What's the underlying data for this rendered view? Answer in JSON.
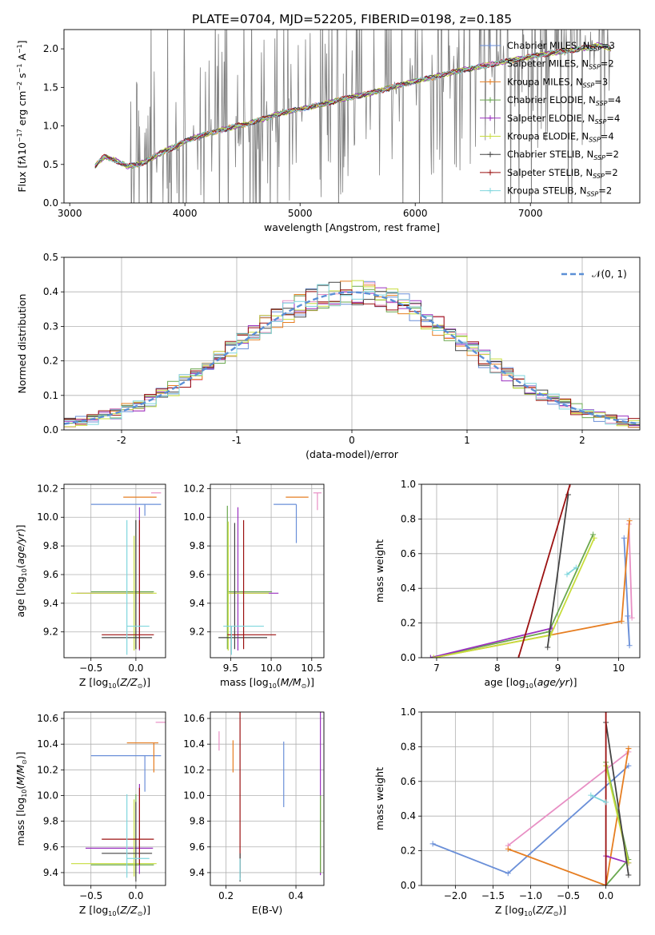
{
  "figure_title": "PLATE=0704, MJD=52205, FIBERID=0198, z=0.185",
  "colors": {
    "chabrier_miles": "#6a8fd8",
    "salpeter_miles": "#e88fc4",
    "kroupa_miles": "#e67e22",
    "chabrier_elodie": "#6aa84f",
    "salpeter_elodie": "#9b30c0",
    "kroupa_elodie": "#c7dd3c",
    "chabrier_stelib": "#444444",
    "salpeter_stelib": "#9b1111",
    "kroupa_stelib": "#7fd6dd",
    "data": "#808080",
    "gaussian": "#5b8fd6",
    "grid": "#b0b0b0"
  },
  "chart_data": [
    {
      "id": "spectrum",
      "type": "line",
      "xlabel": "wavelength [Angstrom, rest frame]",
      "ylabel_html": "Flux [f<tspan font-style='italic'>λ</tspan>10<tspan dy='-5' font-size='8'>−17</tspan><tspan dy='5'> erg cm</tspan><tspan dy='-5' font-size='8'>−2</tspan><tspan dy='5'> s</tspan><tspan dy='-5' font-size='8'>−1</tspan><tspan dy='5'> A</tspan><tspan dy='-5' font-size='8'>−1</tspan><tspan dy='5'>]</tspan>",
      "xlim": [
        2950,
        7950
      ],
      "ylim": [
        0,
        2.25
      ],
      "xticks": [
        3000,
        4000,
        5000,
        6000,
        7000
      ],
      "yticks": [
        0.0,
        0.5,
        1.0,
        1.5,
        2.0
      ],
      "continuum_x": [
        3220,
        3300,
        3400,
        3500,
        3600,
        3700,
        3800,
        3900,
        4000,
        4100,
        4200,
        4400,
        4600,
        4800,
        5000,
        5200,
        5400,
        5600,
        5800,
        6000,
        6200,
        6400,
        6600,
        6800,
        7000,
        7200,
        7400,
        7600,
        7700
      ],
      "continuum_y": [
        0.48,
        0.6,
        0.55,
        0.48,
        0.5,
        0.57,
        0.66,
        0.72,
        0.8,
        0.86,
        0.9,
        0.98,
        1.05,
        1.15,
        1.22,
        1.28,
        1.36,
        1.42,
        1.5,
        1.58,
        1.65,
        1.72,
        1.78,
        1.84,
        1.9,
        1.95,
        1.99,
        2.05,
        2.0
      ],
      "data_noise_start": 3500,
      "legend": [
        {
          "key": "chabrier_miles",
          "label": "Chabrier MILES, N",
          "sub": "SSP",
          "tail": "=3",
          "marker": "+"
        },
        {
          "key": "salpeter_miles",
          "label": "Salpeter MILES, N",
          "sub": "SSP",
          "tail": "=2",
          "marker": "+"
        },
        {
          "key": "kroupa_miles",
          "label": "Kroupa MILES, N",
          "sub": "SSP",
          "tail": "=3",
          "marker": "+"
        },
        {
          "key": "chabrier_elodie",
          "label": "Chabrier ELODIE, N",
          "sub": "SSP",
          "tail": "=4",
          "marker": "+"
        },
        {
          "key": "salpeter_elodie",
          "label": "Salpeter ELODIE, N",
          "sub": "SSP",
          "tail": "=4",
          "marker": "+"
        },
        {
          "key": "kroupa_elodie",
          "label": "Kroupa ELODIE, N",
          "sub": "SSP",
          "tail": "=4",
          "marker": "+"
        },
        {
          "key": "chabrier_stelib",
          "label": "Chabrier STELIB, N",
          "sub": "SSP",
          "tail": "=2",
          "marker": "+"
        },
        {
          "key": "salpeter_stelib",
          "label": "Salpeter STELIB, N",
          "sub": "SSP",
          "tail": "=2",
          "marker": "+"
        },
        {
          "key": "kroupa_stelib",
          "label": "Kroupa STELIB, N",
          "sub": "SSP",
          "tail": "=2",
          "marker": "+"
        }
      ]
    },
    {
      "id": "residuals",
      "type": "step",
      "xlabel": "(data-model)/error",
      "ylabel": "Normed distribution",
      "xlim": [
        -2.5,
        2.5
      ],
      "ylim": [
        0,
        0.5
      ],
      "xticks": [
        -2,
        -1,
        0,
        1,
        2
      ],
      "yticks": [
        0.0,
        0.1,
        0.2,
        0.3,
        0.4,
        0.5
      ],
      "legend_label": "𝒩(0, 1)",
      "bin_width": 0.1
    },
    {
      "id": "age_vs_Z",
      "type": "errorbar",
      "xlabel_html": "Z [log<tspan dy='3' font-size='8'>10</tspan><tspan dy='-3'>(</tspan><tspan font-style='italic'>Z/Z</tspan><tspan dy='3' font-size='8'>⊙</tspan><tspan dy='-3'>)]</tspan>",
      "ylabel_html": "age  [log<tspan dy='3' font-size='8'>10</tspan><tspan dy='-3'>(</tspan><tspan font-style='italic'>age/yr</tspan>)]",
      "xlim": [
        -0.8,
        0.33
      ],
      "ylim": [
        9.02,
        10.23
      ],
      "xticks": [
        -0.5,
        0.0
      ],
      "xticklabels": [
        "−0.5",
        "0.0"
      ],
      "yticks": [
        9.2,
        9.4,
        9.6,
        9.8,
        10.0,
        10.2
      ],
      "points": [
        {
          "key": "chabrier_miles",
          "x": 0.1,
          "xerr": [
            0.6,
            0.18
          ],
          "y": 10.09,
          "yerr": [
            0.08,
            0.0
          ]
        },
        {
          "key": "salpeter_miles",
          "x": 0.22,
          "xerr": [
            0.05,
            0.06
          ],
          "y": 10.17,
          "yerr": [
            0.0,
            0.0
          ]
        },
        {
          "key": "kroupa_miles",
          "x": 0.18,
          "xerr": [
            0.32,
            0.05
          ],
          "y": 10.14,
          "yerr": [
            0.0,
            0.0
          ]
        },
        {
          "key": "chabrier_elodie",
          "x": 0.0,
          "xerr": [
            0.5,
            0.2
          ],
          "y": 9.48,
          "yerr": [
            0.4,
            0.5
          ]
        },
        {
          "key": "salpeter_elodie",
          "x": 0.04,
          "xerr": [
            0.7,
            0.15
          ],
          "y": 9.47,
          "yerr": [
            0.4,
            0.6
          ]
        },
        {
          "key": "kroupa_elodie",
          "x": -0.02,
          "xerr": [
            0.7,
            0.25
          ],
          "y": 9.47,
          "yerr": [
            0.4,
            0.4
          ]
        },
        {
          "key": "chabrier_stelib",
          "x": 0.0,
          "xerr": [
            0.38,
            0.18
          ],
          "y": 9.16,
          "yerr": [
            0.08,
            0.82
          ]
        },
        {
          "key": "salpeter_stelib",
          "x": 0.04,
          "xerr": [
            0.42,
            0.16
          ],
          "y": 9.18,
          "yerr": [
            0.1,
            0.8
          ]
        },
        {
          "key": "kroupa_stelib",
          "x": -0.1,
          "xerr": [
            0.0,
            0.25
          ],
          "y": 9.24,
          "yerr": [
            0.2,
            0.74
          ]
        }
      ]
    },
    {
      "id": "age_vs_mass",
      "type": "errorbar",
      "xlabel_html": "mass [log<tspan dy='3' font-size='8'>10</tspan><tspan dy='-3'>(</tspan><tspan font-style='italic'>M/M</tspan><tspan dy='3' font-size='8'>⊙</tspan><tspan dy='-3'>)]</tspan>",
      "xlim": [
        9.25,
        10.65
      ],
      "ylim": [
        9.02,
        10.23
      ],
      "xticks": [
        9.5,
        10.0,
        10.5
      ],
      "xticklabels": [
        "9.5",
        "10.0",
        "10.5"
      ],
      "yticks": [
        9.2,
        9.4,
        9.6,
        9.8,
        10.0,
        10.2
      ],
      "points": [
        {
          "key": "chabrier_miles",
          "x": 10.31,
          "xerr": [
            0.28,
            0.0
          ],
          "y": 10.09,
          "yerr": [
            0.27,
            0.0
          ]
        },
        {
          "key": "salpeter_miles",
          "x": 10.57,
          "xerr": [
            0.05,
            0.05
          ],
          "y": 10.17,
          "yerr": [
            0.12,
            0.0
          ]
        },
        {
          "key": "kroupa_miles",
          "x": 10.41,
          "xerr": [
            0.23,
            0.05
          ],
          "y": 10.14,
          "yerr": [
            0.0,
            0.0
          ]
        },
        {
          "key": "chabrier_elodie",
          "x": 9.46,
          "xerr": [
            0.0,
            0.55
          ],
          "y": 9.48,
          "yerr": [
            0.4,
            0.6
          ]
        },
        {
          "key": "salpeter_elodie",
          "x": 9.59,
          "xerr": [
            0.1,
            0.5
          ],
          "y": 9.47,
          "yerr": [
            0.4,
            0.6
          ]
        },
        {
          "key": "kroupa_elodie",
          "x": 9.47,
          "xerr": [
            0.0,
            0.5
          ],
          "y": 9.47,
          "yerr": [
            0.4,
            0.5
          ]
        },
        {
          "key": "chabrier_stelib",
          "x": 9.55,
          "xerr": [
            0.2,
            0.4
          ],
          "y": 9.16,
          "yerr": [
            0.08,
            0.8
          ]
        },
        {
          "key": "salpeter_stelib",
          "x": 9.66,
          "xerr": [
            0.2,
            0.4
          ],
          "y": 9.18,
          "yerr": [
            0.1,
            0.8
          ]
        },
        {
          "key": "kroupa_stelib",
          "x": 9.51,
          "xerr": [
            0.1,
            0.4
          ],
          "y": 9.24,
          "yerr": [
            0.2,
            0.0
          ]
        }
      ]
    },
    {
      "id": "weight_vs_age",
      "type": "line",
      "xlabel_html": "age  [log<tspan dy='3' font-size='8'>10</tspan><tspan dy='-3'>(</tspan><tspan font-style='italic'>age/yr</tspan>)]",
      "ylabel": "mass weight",
      "xlim": [
        6.75,
        10.35
      ],
      "ylim": [
        0,
        1.0
      ],
      "xticks": [
        7,
        8,
        9,
        10
      ],
      "yticks": [
        0.0,
        0.2,
        0.4,
        0.6,
        0.8,
        1.0
      ],
      "series": [
        {
          "key": "chabrier_miles",
          "x": [
            10.09,
            10.18,
            10.15
          ],
          "y": [
            0.69,
            0.07,
            0.24
          ]
        },
        {
          "key": "salpeter_miles",
          "x": [
            10.17,
            10.22
          ],
          "y": [
            0.77,
            0.23
          ]
        },
        {
          "key": "kroupa_miles",
          "x": [
            6.95,
            10.05,
            10.18
          ],
          "y": [
            0.0,
            0.21,
            0.79
          ]
        },
        {
          "key": "chabrier_elodie",
          "x": [
            6.9,
            8.85,
            9.58
          ],
          "y": [
            0.0,
            0.15,
            0.71
          ]
        },
        {
          "key": "salpeter_elodie",
          "x": [
            6.9,
            8.9
          ],
          "y": [
            0.0,
            0.17
          ]
        },
        {
          "key": "kroupa_elodie",
          "x": [
            6.95,
            8.88,
            9.6
          ],
          "y": [
            0.0,
            0.13,
            0.69
          ]
        },
        {
          "key": "chabrier_stelib",
          "x": [
            8.83,
            9.17
          ],
          "y": [
            0.06,
            0.94
          ]
        },
        {
          "key": "salpeter_stelib",
          "x": [
            8.35,
            9.2
          ],
          "y": [
            0.0,
            1.0
          ]
        },
        {
          "key": "kroupa_stelib",
          "x": [
            9.15,
            9.3
          ],
          "y": [
            0.48,
            0.52
          ]
        }
      ]
    },
    {
      "id": "mass_vs_Z",
      "type": "errorbar",
      "xlabel_html": "Z [log<tspan dy='3' font-size='8'>10</tspan><tspan dy='-3'>(</tspan><tspan font-style='italic'>Z/Z</tspan><tspan dy='3' font-size='8'>⊙</tspan><tspan dy='-3'>)]</tspan>",
      "ylabel_html": "mass [log<tspan dy='3' font-size='8'>10</tspan><tspan dy='-3'>(</tspan><tspan font-style='italic'>M/M</tspan><tspan dy='3' font-size='8'>⊙</tspan><tspan dy='-3'>)]</tspan>",
      "xlim": [
        -0.8,
        0.33
      ],
      "ylim": [
        9.3,
        10.65
      ],
      "xticks": [
        -0.5,
        0.0
      ],
      "xticklabels": [
        "−0.5",
        "0.0"
      ],
      "yticks": [
        9.4,
        9.6,
        9.8,
        10.0,
        10.2,
        10.4,
        10.6
      ],
      "points": [
        {
          "key": "chabrier_miles",
          "x": 0.1,
          "xerr": [
            0.6,
            0.18
          ],
          "y": 10.31,
          "yerr": [
            0.28,
            0.0
          ]
        },
        {
          "key": "salpeter_miles",
          "x": 0.28,
          "xerr": [
            0.06,
            0.05
          ],
          "y": 10.57,
          "yerr": [
            0.0,
            0.0
          ]
        },
        {
          "key": "kroupa_miles",
          "x": 0.2,
          "xerr": [
            0.3,
            0.05
          ],
          "y": 10.41,
          "yerr": [
            0.23,
            0.0
          ]
        },
        {
          "key": "chabrier_elodie",
          "x": 0.0,
          "xerr": [
            0.5,
            0.2
          ],
          "y": 9.46,
          "yerr": [
            0.1,
            0.55
          ]
        },
        {
          "key": "salpeter_elodie",
          "x": 0.04,
          "xerr": [
            0.6,
            0.15
          ],
          "y": 9.59,
          "yerr": [
            0.2,
            0.5
          ]
        },
        {
          "key": "kroupa_elodie",
          "x": -0.02,
          "xerr": [
            0.7,
            0.25
          ],
          "y": 9.47,
          "yerr": [
            0.1,
            0.5
          ]
        },
        {
          "key": "chabrier_stelib",
          "x": 0.0,
          "xerr": [
            0.38,
            0.18
          ],
          "y": 9.55,
          "yerr": [
            0.22,
            0.4
          ]
        },
        {
          "key": "salpeter_stelib",
          "x": 0.04,
          "xerr": [
            0.42,
            0.16
          ],
          "y": 9.66,
          "yerr": [
            0.2,
            0.4
          ]
        },
        {
          "key": "kroupa_stelib",
          "x": -0.1,
          "xerr": [
            0.0,
            0.25
          ],
          "y": 9.51,
          "yerr": [
            0.15,
            0.5
          ]
        }
      ]
    },
    {
      "id": "mass_vs_ebv",
      "type": "errorbar",
      "xlabel": "E(B-V)",
      "xlim": [
        0.155,
        0.48
      ],
      "ylim": [
        9.3,
        10.65
      ],
      "xticks": [
        0.2,
        0.4
      ],
      "xticklabels": [
        "0.2",
        "0.4"
      ],
      "yticks": [
        9.4,
        9.6,
        9.8,
        10.0,
        10.2,
        10.4,
        10.6
      ],
      "points": [
        {
          "key": "salpeter_miles",
          "x": 0.18,
          "y": 10.5,
          "yerr": [
            0.15,
            0.0
          ]
        },
        {
          "key": "kroupa_miles",
          "x": 0.22,
          "y": 10.3,
          "yerr": [
            0.12,
            0.13
          ]
        },
        {
          "key": "chabrier_miles",
          "x": 0.365,
          "y": 10.15,
          "yerr": [
            0.24,
            0.27
          ]
        },
        {
          "key": "salpeter_stelib",
          "x": 0.24,
          "y": 9.66,
          "yerr": [
            0.3,
            1.44
          ]
        },
        {
          "key": "chabrier_stelib",
          "x": 0.24,
          "y": 9.55,
          "yerr": [
            0.22,
            0.0
          ]
        },
        {
          "key": "kroupa_stelib",
          "x": 0.24,
          "y": 9.51,
          "yerr": [
            0.17,
            0.0
          ]
        },
        {
          "key": "salpeter_elodie",
          "x": 0.47,
          "y": 9.7,
          "yerr": [
            0.32,
            1.41
          ]
        },
        {
          "key": "kroupa_elodie",
          "x": 0.47,
          "y": 9.7,
          "yerr": [
            0.3,
            0.3
          ]
        },
        {
          "key": "chabrier_elodie",
          "x": 0.47,
          "y": 9.7,
          "yerr": [
            0.3,
            0.3
          ]
        }
      ]
    },
    {
      "id": "weight_vs_Z",
      "type": "line",
      "xlabel_html": "Z [log<tspan dy='3' font-size='8'>10</tspan><tspan dy='-3'>(</tspan><tspan font-style='italic'>Z/Z</tspan><tspan dy='3' font-size='8'>⊙</tspan><tspan dy='-3'>)]</tspan>",
      "ylabel": "mass weight",
      "xlim": [
        -2.45,
        0.45
      ],
      "ylim": [
        0,
        1.0
      ],
      "xticks": [
        -2.0,
        -1.5,
        -1.0,
        -0.5,
        0.0
      ],
      "xticklabels": [
        "−2.0",
        "−1.5",
        "−1.0",
        "−0.5",
        "0.0"
      ],
      "yticks": [
        0.0,
        0.2,
        0.4,
        0.6,
        0.8,
        1.0
      ],
      "series": [
        {
          "key": "chabrier_miles",
          "x": [
            -2.3,
            -1.3,
            0.3
          ],
          "y": [
            0.24,
            0.07,
            0.69
          ]
        },
        {
          "key": "salpeter_miles",
          "x": [
            -1.3,
            0.3
          ],
          "y": [
            0.23,
            0.77
          ]
        },
        {
          "key": "kroupa_miles",
          "x": [
            -1.3,
            0.0,
            0.3,
            0.3
          ],
          "y": [
            0.21,
            0.0,
            0.79,
            0.79
          ]
        },
        {
          "key": "chabrier_elodie",
          "x": [
            0.0,
            0.3,
            0.0
          ],
          "y": [
            0.71,
            0.15,
            0.0
          ]
        },
        {
          "key": "salpeter_elodie",
          "x": [
            0.0,
            0.3
          ],
          "y": [
            0.17,
            0.13
          ]
        },
        {
          "key": "kroupa_elodie",
          "x": [
            0.0,
            0.3
          ],
          "y": [
            0.69,
            0.13
          ]
        },
        {
          "key": "chabrier_stelib",
          "x": [
            0.0,
            0.3
          ],
          "y": [
            0.94,
            0.06
          ]
        },
        {
          "key": "salpeter_stelib",
          "x": [
            0.0,
            0.0
          ],
          "y": [
            1.0,
            0.0
          ]
        },
        {
          "key": "kroupa_stelib",
          "x": [
            -0.2,
            0.0
          ],
          "y": [
            0.52,
            0.48
          ]
        }
      ]
    }
  ]
}
